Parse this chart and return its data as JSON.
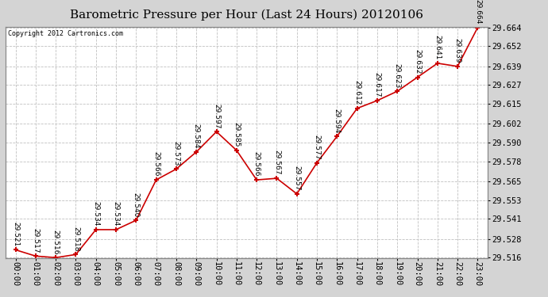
{
  "title": "Barometric Pressure per Hour (Last 24 Hours) 20120106",
  "copyright": "Copyright 2012 Cartronics.com",
  "hours": [
    "00:00",
    "01:00",
    "02:00",
    "03:00",
    "04:00",
    "05:00",
    "06:00",
    "07:00",
    "08:00",
    "09:00",
    "10:00",
    "11:00",
    "12:00",
    "13:00",
    "14:00",
    "15:00",
    "16:00",
    "17:00",
    "18:00",
    "19:00",
    "20:00",
    "21:00",
    "22:00",
    "23:00"
  ],
  "values": [
    29.521,
    29.517,
    29.516,
    29.518,
    29.534,
    29.534,
    29.54,
    29.566,
    29.573,
    29.584,
    29.597,
    29.585,
    29.566,
    29.567,
    29.557,
    29.577,
    29.594,
    29.612,
    29.617,
    29.623,
    29.632,
    29.641,
    29.639,
    29.664
  ],
  "line_color": "#cc0000",
  "marker_color": "#cc0000",
  "bg_color": "#ffffff",
  "outer_bg": "#d4d4d4",
  "grid_color": "#c0c0c0",
  "text_color": "#000000",
  "ylim_min": 29.516,
  "ylim_max": 29.664,
  "yticks": [
    29.516,
    29.528,
    29.541,
    29.553,
    29.565,
    29.578,
    29.59,
    29.602,
    29.615,
    29.627,
    29.639,
    29.652,
    29.664
  ],
  "title_fontsize": 11,
  "tick_fontsize": 7.5,
  "annotation_fontsize": 6.5
}
